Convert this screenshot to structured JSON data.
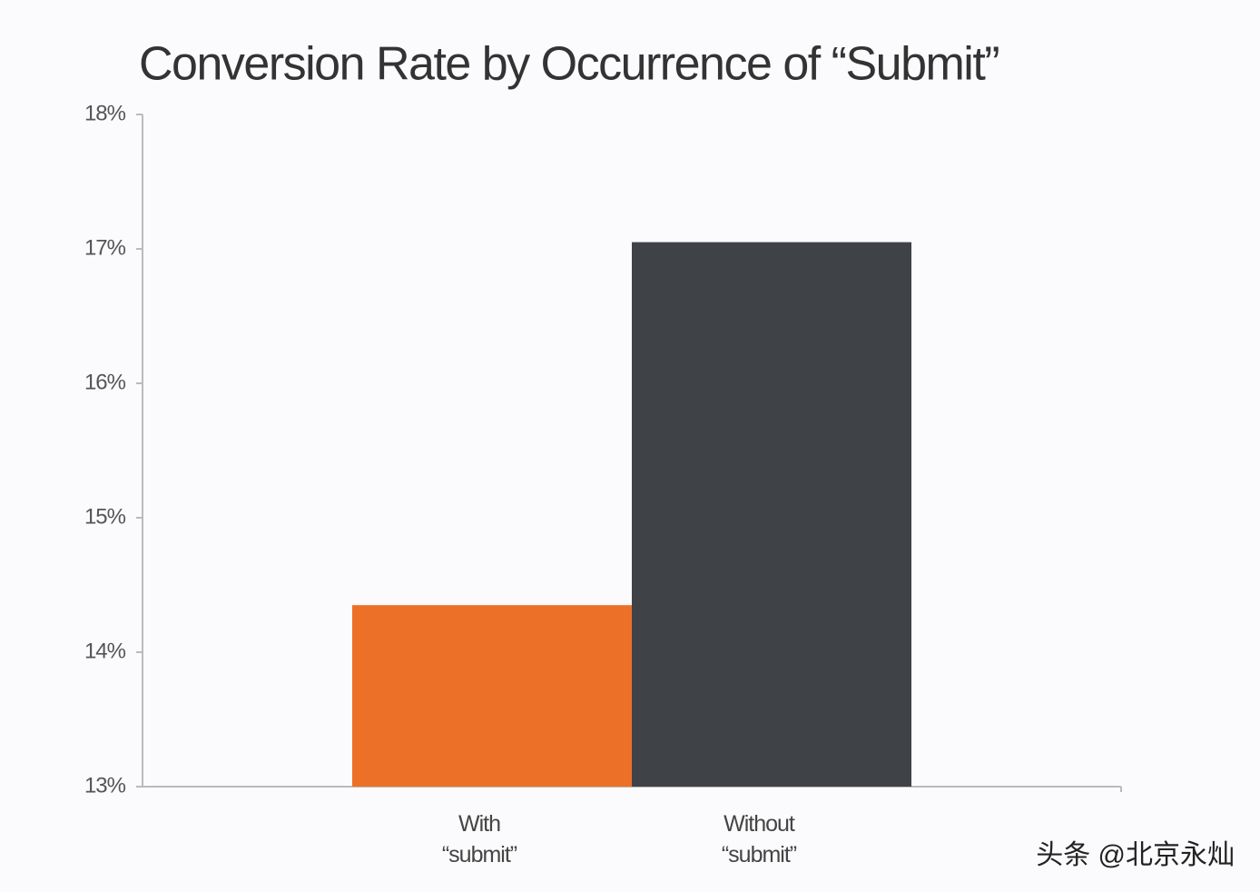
{
  "chart_data": {
    "type": "bar",
    "title": "Conversion Rate by Occurrence of “Submit”",
    "categories": [
      "With\n“submit”",
      "Without\n“submit”"
    ],
    "values": [
      14.35,
      17.05
    ],
    "colors": [
      "#ec7028",
      "#3f4247"
    ],
    "ylim": [
      13,
      18
    ],
    "yticks": [
      {
        "value": 13,
        "label": "13%"
      },
      {
        "value": 14,
        "label": "14%"
      },
      {
        "value": 15,
        "label": "15%"
      },
      {
        "value": 16,
        "label": "16%"
      },
      {
        "value": 17,
        "label": "17%"
      },
      {
        "value": 18,
        "label": "18%"
      }
    ],
    "grid": false
  },
  "watermark": "头条 @北京永灿"
}
